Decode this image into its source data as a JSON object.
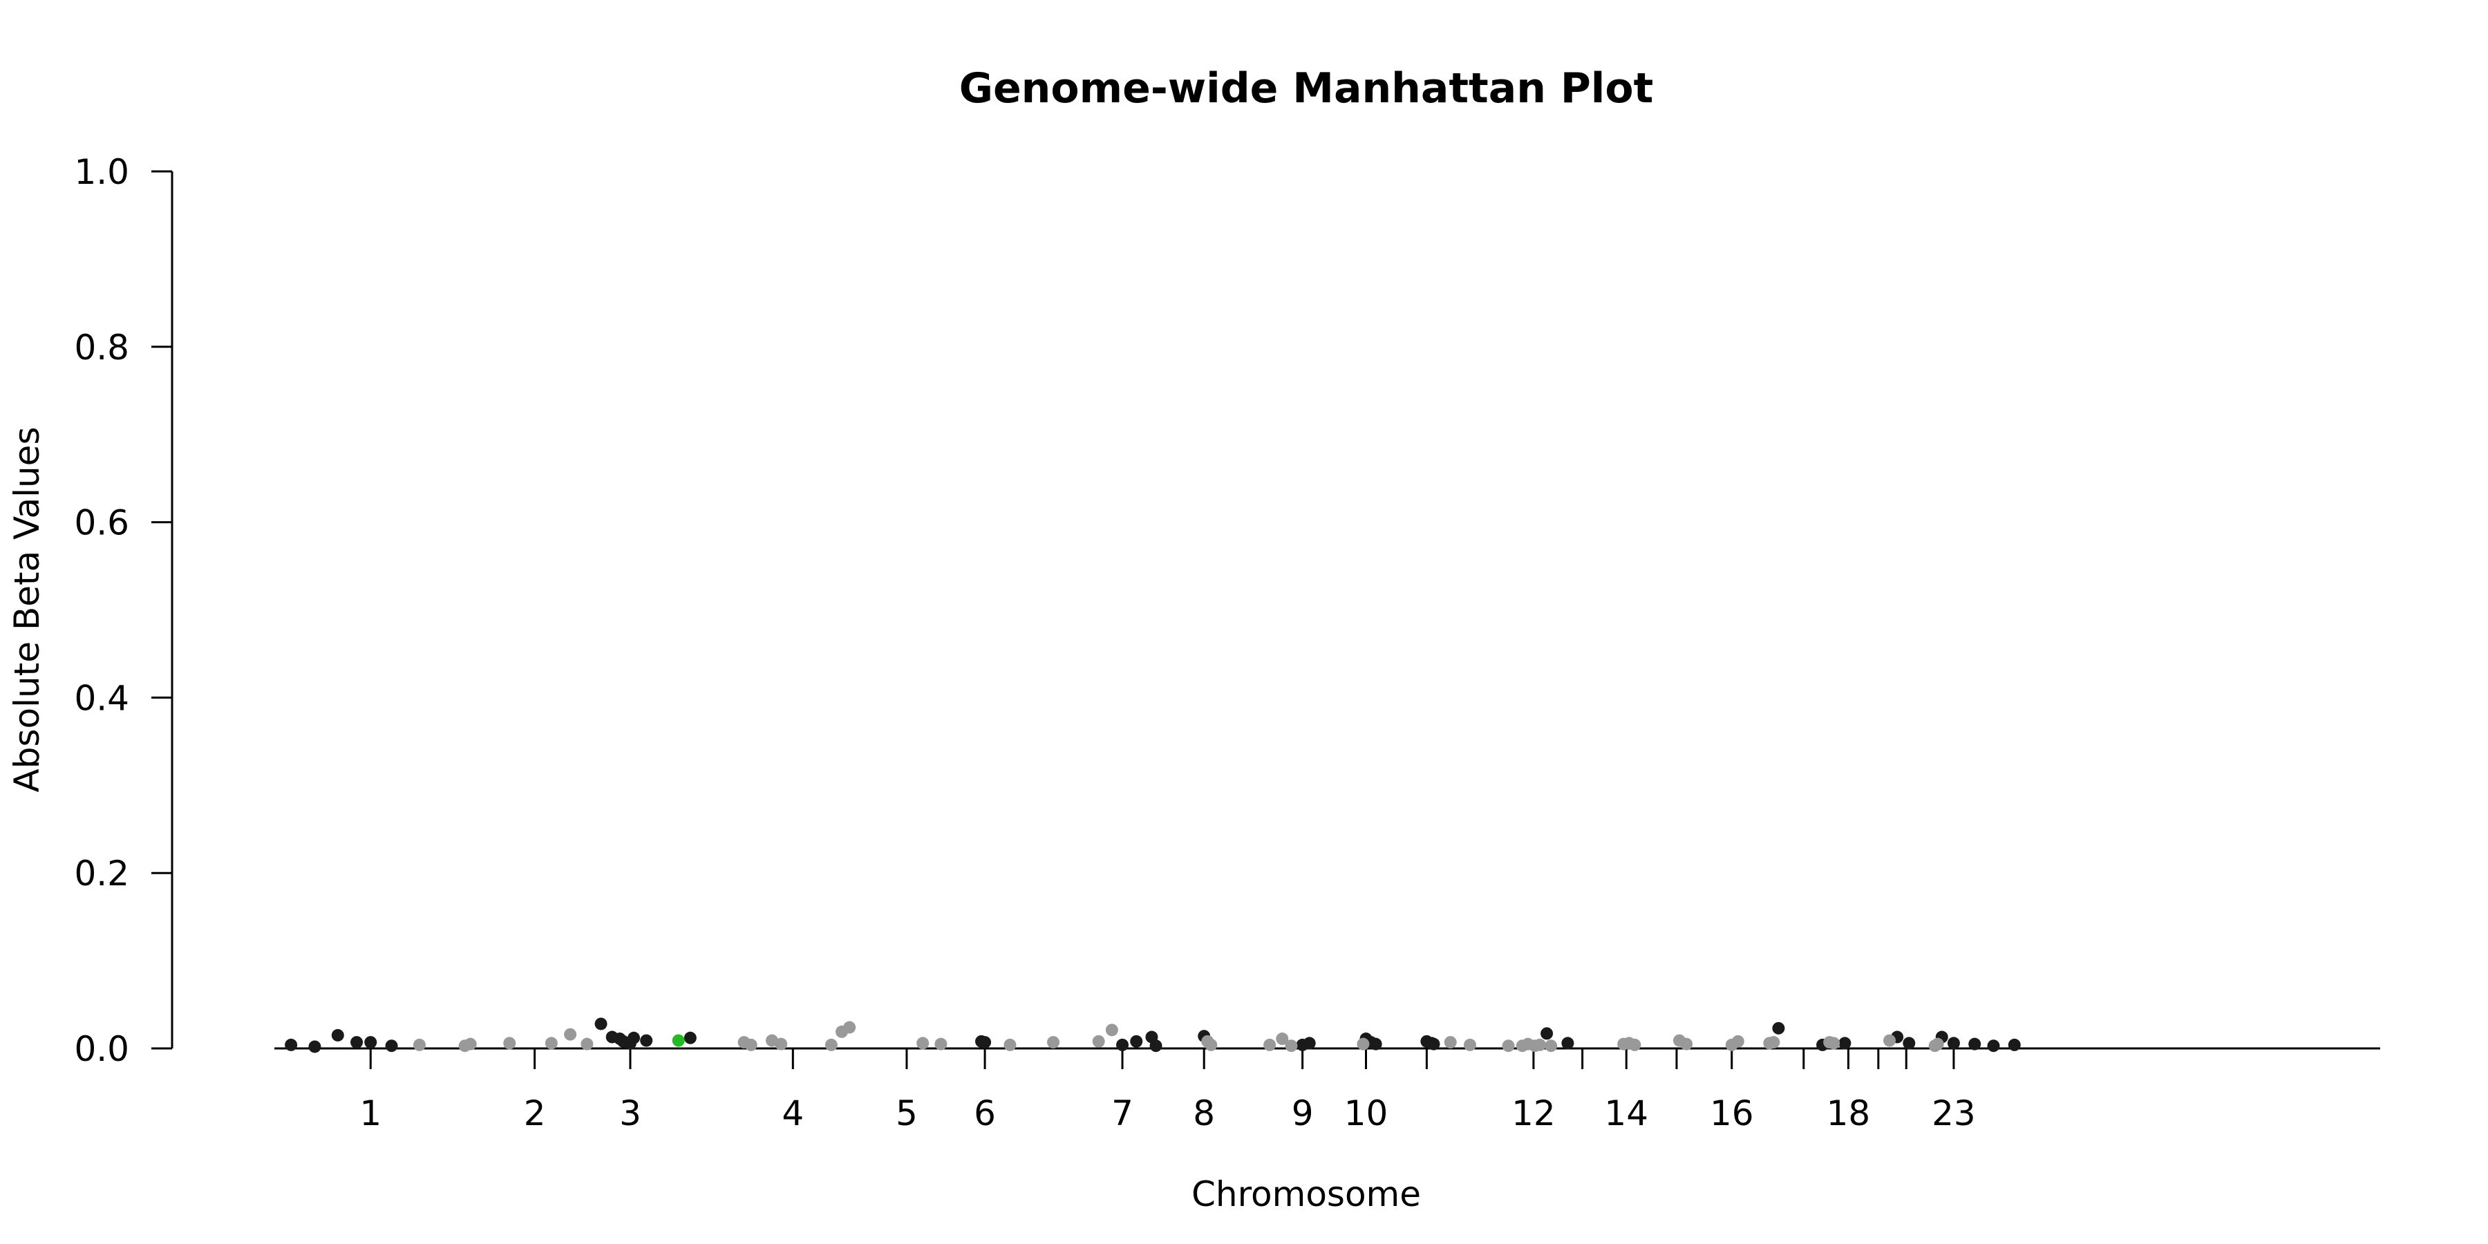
{
  "chart_data": {
    "type": "scatter",
    "title": "Genome-wide Manhattan Plot",
    "xlabel": "Chromosome",
    "ylabel": "Absolute Beta Values",
    "ylim": [
      0,
      1
    ],
    "yticks": [
      "0.0",
      "0.2",
      "0.4",
      "0.6",
      "0.8",
      "1.0"
    ],
    "xlim": [
      0,
      3000
    ],
    "xticks": [
      {
        "label": "1",
        "pos": 125
      },
      {
        "label": "2",
        "pos": 360
      },
      {
        "label": "3",
        "pos": 497
      },
      {
        "label": "4",
        "pos": 730
      },
      {
        "label": "5",
        "pos": 893
      },
      {
        "label": "6",
        "pos": 1005
      },
      {
        "label": "7",
        "pos": 1202
      },
      {
        "label": "8",
        "pos": 1319
      },
      {
        "label": "9",
        "pos": 1460
      },
      {
        "label": "10",
        "pos": 1551
      },
      {
        "label": "",
        "pos": 1638
      },
      {
        "label": "12",
        "pos": 1791
      },
      {
        "label": "",
        "pos": 1861
      },
      {
        "label": "14",
        "pos": 1924
      },
      {
        "label": "",
        "pos": 1996
      },
      {
        "label": "16",
        "pos": 2075
      },
      {
        "label": "",
        "pos": 2178
      },
      {
        "label": "18",
        "pos": 2242
      },
      {
        "label": "",
        "pos": 2285
      },
      {
        "label": "",
        "pos": 2325
      },
      {
        "label": "23",
        "pos": 2393
      }
    ],
    "grid": false,
    "legend": "none",
    "colors": {
      "odd": "#1a1a1a",
      "even": "#999999",
      "highlight": "#22bb22"
    },
    "series": [
      {
        "color_key": "odd",
        "x": [
          11,
          45,
          78,
          105,
          125,
          155,
          455,
          471,
          482,
          487,
          497,
          502,
          520,
          583,
          1000,
          1005,
          1202,
          1222,
          1244,
          1250,
          1319,
          1460,
          1470,
          1551,
          1558,
          1565,
          1638,
          1645,
          1648,
          1810,
          1840,
          2142,
          2205,
          2237,
          2312,
          2329,
          2376,
          2393,
          2423,
          2450,
          2480
        ],
        "y": [
          0.004,
          0.002,
          0.015,
          0.007,
          0.007,
          0.003,
          0.028,
          0.013,
          0.011,
          0.008,
          0.006,
          0.012,
          0.009,
          0.012,
          0.008,
          0.007,
          0.004,
          0.008,
          0.013,
          0.003,
          0.014,
          0.004,
          0.006,
          0.011,
          0.007,
          0.005,
          0.008,
          0.006,
          0.005,
          0.017,
          0.006,
          0.023,
          0.004,
          0.006,
          0.013,
          0.006,
          0.013,
          0.006,
          0.005,
          0.003,
          0.004
        ]
      },
      {
        "color_key": "even",
        "x": [
          195,
          260,
          268,
          324,
          384,
          411,
          435,
          660,
          670,
          700,
          713,
          785,
          800,
          811,
          916,
          942,
          1041,
          1103,
          1168,
          1187,
          1324,
          1329,
          1413,
          1431,
          1444,
          1547,
          1672,
          1700,
          1755,
          1775,
          1783,
          1793,
          1800,
          1816,
          1920,
          1928,
          1936,
          2000,
          2010,
          2075,
          2084,
          2129,
          2135,
          2215,
          2221,
          2301,
          2366,
          2370
        ],
        "y": [
          0.004,
          0.003,
          0.005,
          0.006,
          0.006,
          0.016,
          0.005,
          0.007,
          0.004,
          0.009,
          0.005,
          0.004,
          0.019,
          0.024,
          0.006,
          0.005,
          0.004,
          0.007,
          0.008,
          0.021,
          0.008,
          0.004,
          0.004,
          0.011,
          0.003,
          0.005,
          0.007,
          0.004,
          0.003,
          0.003,
          0.005,
          0.003,
          0.004,
          0.003,
          0.005,
          0.006,
          0.004,
          0.009,
          0.005,
          0.004,
          0.008,
          0.006,
          0.007,
          0.007,
          0.006,
          0.009,
          0.003,
          0.005
        ]
      },
      {
        "color_key": "highlight",
        "x": [
          566
        ],
        "y": [
          0.009
        ]
      }
    ]
  }
}
